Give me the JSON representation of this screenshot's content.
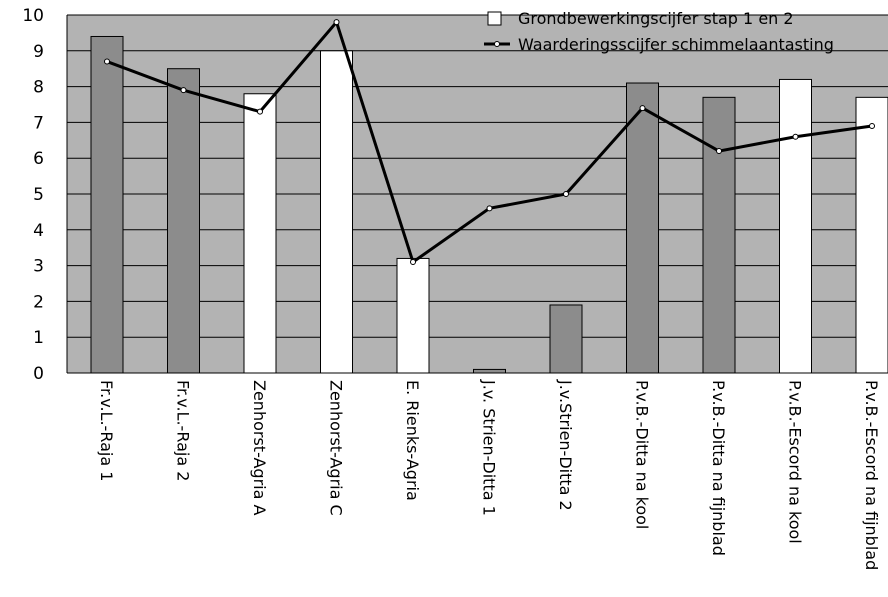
{
  "chart_data": {
    "type": "bar",
    "title": "",
    "xlabel": "",
    "ylabel": "",
    "ylim": [
      0,
      10
    ],
    "yticks": [
      0,
      1,
      2,
      3,
      4,
      5,
      6,
      7,
      8,
      9,
      10
    ],
    "grid": true,
    "legend_position": "top-right",
    "categories": [
      "Fr.v.L.-Raja 1",
      "Fr.v.L.-Raja 2",
      "Zenhorst-Agria A",
      "Zenhorst-Agria C",
      "E. Rienks-Agria",
      "J.v. Strien-Ditta 1",
      "J.v.Strien-Ditta 2",
      "P.v.B.-Ditta na kool",
      "P.v.B.-Ditta na fijnblad",
      "P.v.B.-Escord na kool",
      "P.v.B.-Escord na fijnblad"
    ],
    "bar_fill": [
      "gray",
      "gray",
      "white",
      "white",
      "white",
      "gray",
      "gray",
      "gray",
      "gray",
      "white",
      "white"
    ],
    "series": [
      {
        "name": "Grondbewerkingscijfer stap 1 en 2",
        "type": "bar",
        "values": [
          9.4,
          8.5,
          7.8,
          9.0,
          3.2,
          0.1,
          1.9,
          8.1,
          7.7,
          8.2,
          7.7
        ]
      },
      {
        "name": "Waarderingsscijfer schimmelaantasting",
        "type": "line",
        "values": [
          8.7,
          7.9,
          7.3,
          9.8,
          3.1,
          4.6,
          5.0,
          7.4,
          6.2,
          6.6,
          6.9
        ]
      }
    ],
    "colors": {
      "plot_background": "#b3b3b3",
      "bar_dark": "#8c8c8c",
      "bar_light": "#ffffff",
      "line": "#000000",
      "gridline": "#000000"
    }
  }
}
